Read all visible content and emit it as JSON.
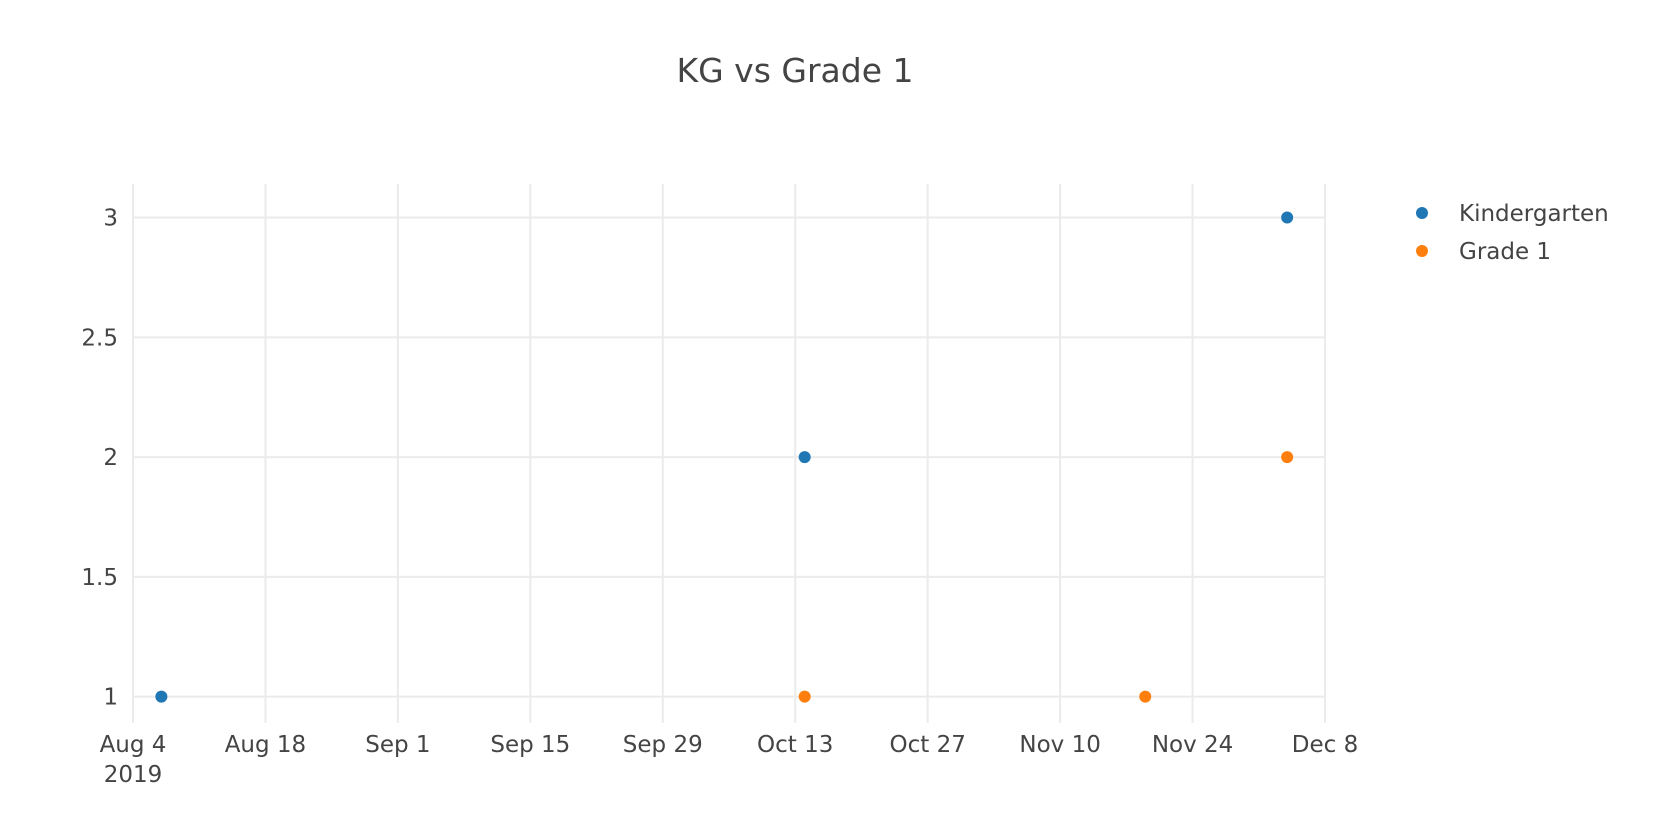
{
  "chart_data": {
    "type": "scatter",
    "title": "KG vs Grade 1",
    "xlabel": "",
    "ylabel": "",
    "x_type": "date",
    "xlim": [
      "2019-08-04",
      "2019-12-08"
    ],
    "ylim": [
      0.89,
      3.14
    ],
    "x_ticks": [
      {
        "value": "2019-08-04",
        "label": "Aug 4",
        "sublabel": "2019"
      },
      {
        "value": "2019-08-18",
        "label": "Aug 18"
      },
      {
        "value": "2019-09-01",
        "label": "Sep 1"
      },
      {
        "value": "2019-09-15",
        "label": "Sep 15"
      },
      {
        "value": "2019-09-29",
        "label": "Sep 29"
      },
      {
        "value": "2019-10-13",
        "label": "Oct 13"
      },
      {
        "value": "2019-10-27",
        "label": "Oct 27"
      },
      {
        "value": "2019-11-10",
        "label": "Nov 10"
      },
      {
        "value": "2019-11-24",
        "label": "Nov 24"
      },
      {
        "value": "2019-12-08",
        "label": "Dec 8"
      }
    ],
    "y_ticks": [
      {
        "value": 1,
        "label": "1"
      },
      {
        "value": 1.5,
        "label": "1.5"
      },
      {
        "value": 2,
        "label": "2"
      },
      {
        "value": 2.5,
        "label": "2.5"
      },
      {
        "value": 3,
        "label": "3"
      }
    ],
    "grid": true,
    "legend_position": "top-right",
    "series": [
      {
        "name": "Kindergarten",
        "color": "#1f77b4",
        "points": [
          {
            "x": "2019-08-07",
            "y": 1
          },
          {
            "x": "2019-10-14",
            "y": 2
          },
          {
            "x": "2019-12-04",
            "y": 3
          }
        ]
      },
      {
        "name": "Grade 1",
        "color": "#ff7f0e",
        "points": [
          {
            "x": "2019-10-14",
            "y": 1
          },
          {
            "x": "2019-11-19",
            "y": 1
          },
          {
            "x": "2019-12-04",
            "y": 2
          }
        ]
      }
    ]
  }
}
